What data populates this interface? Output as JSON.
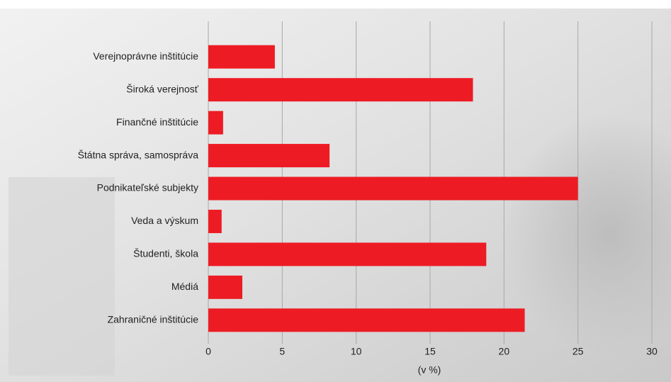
{
  "chart_data": {
    "type": "bar",
    "orientation": "horizontal",
    "categories": [
      "Verejnoprávne inštitúcie",
      "Široká verejnosť",
      "Finančné inštitúcie",
      "Štátna správa, samospráva",
      "Podnikateľské subjekty",
      "Veda a výskum",
      "Študenti, škola",
      "Médiá",
      "Zahraničné inštitúcie"
    ],
    "values": [
      4.5,
      17.9,
      1.0,
      8.2,
      25.0,
      0.9,
      18.8,
      2.3,
      21.4
    ],
    "color": "#ed1c24",
    "xlabel": "(v %)",
    "xlim": [
      0,
      30
    ],
    "xticks": [
      0,
      5,
      10,
      15,
      20,
      25,
      30
    ],
    "grid": true
  }
}
